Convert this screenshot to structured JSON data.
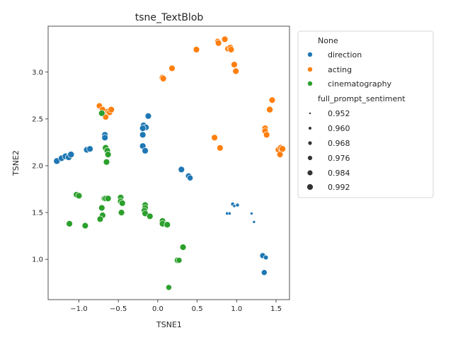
{
  "chart_data": {
    "type": "scatter",
    "title": "tsne_TextBlob",
    "xlabel": "TSNE1",
    "ylabel": "TSNE2",
    "xlim": [
      -1.39,
      1.67
    ],
    "ylim": [
      0.57,
      3.49
    ],
    "xticks": [
      -1.0,
      -0.5,
      0.0,
      0.5,
      1.0,
      1.5
    ],
    "xtick_labels": [
      "−1.0",
      "−0.5",
      "0.0",
      "0.5",
      "1.0",
      "1.5"
    ],
    "yticks": [
      1.0,
      1.5,
      2.0,
      2.5,
      3.0
    ],
    "ytick_labels": [
      "1.0",
      "1.5",
      "2.0",
      "2.5",
      "3.0"
    ],
    "grid": false,
    "legend_placement": "outside-right",
    "hue_title": "None",
    "size_title": "full_prompt_sentiment",
    "size_entries": [
      "0.952",
      "0.960",
      "0.968",
      "0.976",
      "0.984",
      "0.992"
    ],
    "series": [
      {
        "name": "direction",
        "color": "#1f77b4",
        "points": [
          [
            -1.28,
            2.05
          ],
          [
            -1.22,
            2.08
          ],
          [
            -1.17,
            2.1
          ],
          [
            -1.13,
            2.09
          ],
          [
            -1.1,
            2.12
          ],
          [
            -0.9,
            2.17
          ],
          [
            -0.86,
            2.18
          ],
          [
            -0.67,
            2.33
          ],
          [
            -0.67,
            2.3
          ],
          [
            -0.18,
            2.43
          ],
          [
            -0.15,
            2.41
          ],
          [
            -0.19,
            2.4
          ],
          [
            -0.12,
            2.53
          ],
          [
            -0.19,
            2.33
          ],
          [
            -0.19,
            2.21
          ],
          [
            -0.16,
            2.16
          ],
          [
            0.3,
            1.96
          ],
          [
            0.39,
            1.89
          ],
          [
            0.41,
            1.87
          ],
          [
            0.95,
            1.59
          ],
          [
            0.97,
            1.57
          ],
          [
            1.01,
            1.58
          ],
          [
            0.88,
            1.49
          ],
          [
            0.91,
            1.49
          ],
          [
            1.19,
            1.49
          ],
          [
            1.22,
            1.4
          ],
          [
            1.33,
            1.04
          ],
          [
            1.37,
            1.02
          ],
          [
            1.35,
            0.86
          ]
        ],
        "sizes": [
          0.992,
          0.99,
          0.992,
          0.991,
          0.992,
          0.99,
          0.99,
          0.99,
          0.99,
          0.991,
          0.99,
          0.99,
          0.99,
          0.99,
          0.99,
          0.99,
          0.99,
          0.988,
          0.986,
          0.968,
          0.96,
          0.965,
          0.962,
          0.96,
          0.958,
          0.958,
          0.985,
          0.975,
          0.985
        ]
      },
      {
        "name": "acting",
        "color": "#ff7f0e",
        "points": [
          [
            -0.74,
            2.64
          ],
          [
            -0.7,
            2.6
          ],
          [
            -0.67,
            2.55
          ],
          [
            -0.66,
            2.52
          ],
          [
            -0.63,
            2.58
          ],
          [
            -0.61,
            2.57
          ],
          [
            -0.59,
            2.6
          ],
          [
            0.06,
            2.94
          ],
          [
            0.07,
            2.93
          ],
          [
            0.18,
            3.04
          ],
          [
            0.49,
            3.24
          ],
          [
            0.76,
            3.33
          ],
          [
            0.77,
            3.31
          ],
          [
            0.85,
            3.35
          ],
          [
            0.89,
            3.25
          ],
          [
            0.92,
            3.26
          ],
          [
            0.93,
            3.24
          ],
          [
            0.97,
            3.08
          ],
          [
            0.99,
            3.01
          ],
          [
            0.72,
            2.3
          ],
          [
            0.79,
            2.19
          ],
          [
            1.42,
            2.6
          ],
          [
            1.45,
            2.7
          ],
          [
            1.36,
            2.4
          ],
          [
            1.36,
            2.37
          ],
          [
            1.38,
            2.33
          ],
          [
            1.53,
            2.17
          ],
          [
            1.55,
            2.12
          ],
          [
            1.56,
            2.19
          ],
          [
            1.58,
            2.18
          ]
        ],
        "sizes": [
          0.988,
          0.99,
          0.99,
          0.988,
          0.99,
          0.99,
          0.99,
          0.992,
          0.99,
          0.99,
          0.99,
          0.985,
          0.99,
          0.99,
          0.99,
          0.992,
          0.99,
          0.99,
          0.99,
          0.99,
          0.99,
          0.992,
          0.99,
          0.99,
          0.99,
          0.99,
          0.99,
          0.99,
          0.992,
          0.992
        ]
      },
      {
        "name": "cinematography",
        "color": "#2ca02c",
        "points": [
          [
            -0.71,
            2.56
          ],
          [
            -0.66,
            2.19
          ],
          [
            -0.64,
            2.16
          ],
          [
            -0.63,
            2.12
          ],
          [
            -0.65,
            2.04
          ],
          [
            -1.03,
            1.69
          ],
          [
            -1.0,
            1.68
          ],
          [
            -0.68,
            1.65
          ],
          [
            -0.66,
            1.65
          ],
          [
            -0.63,
            1.65
          ],
          [
            -0.71,
            1.55
          ],
          [
            -0.7,
            1.47
          ],
          [
            -0.73,
            1.43
          ],
          [
            -0.47,
            1.66
          ],
          [
            -0.47,
            1.62
          ],
          [
            -0.45,
            1.6
          ],
          [
            -0.46,
            1.5
          ],
          [
            -1.12,
            1.38
          ],
          [
            -0.92,
            1.36
          ],
          [
            -0.16,
            1.58
          ],
          [
            -0.16,
            1.55
          ],
          [
            -0.17,
            1.52
          ],
          [
            -0.16,
            1.49
          ],
          [
            -0.1,
            1.46
          ],
          [
            0.06,
            1.41
          ],
          [
            0.06,
            1.38
          ],
          [
            0.12,
            1.37
          ],
          [
            0.32,
            1.13
          ],
          [
            0.25,
            0.99
          ],
          [
            0.27,
            0.99
          ],
          [
            0.14,
            0.7
          ]
        ],
        "sizes": [
          0.99,
          0.992,
          0.99,
          0.99,
          0.99,
          0.99,
          0.99,
          0.985,
          0.99,
          0.99,
          0.99,
          0.99,
          0.99,
          0.99,
          0.99,
          0.99,
          0.99,
          0.99,
          0.99,
          0.99,
          0.99,
          0.99,
          0.99,
          0.99,
          0.99,
          0.99,
          0.99,
          0.99,
          0.99,
          0.985,
          0.985
        ]
      }
    ]
  }
}
